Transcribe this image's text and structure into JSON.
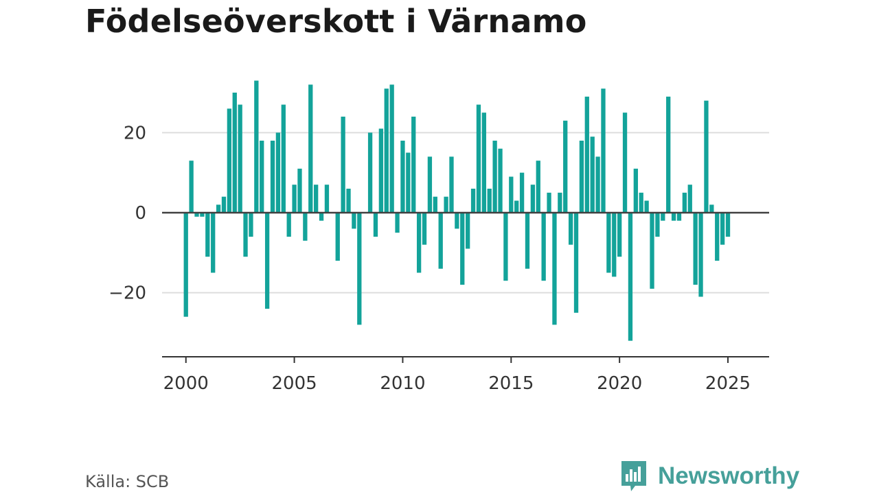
{
  "title": "Födelseöverskott i Värnamo",
  "source": "Källa: SCB",
  "brand": {
    "name": "Newsworthy",
    "icon": "newsworthy-logo-icon",
    "color": "#46a09a"
  },
  "colors": {
    "bar": "#13a39a",
    "grid": "#dddddd",
    "zero_line": "#404040",
    "axis": "#333333",
    "text": "#333333"
  },
  "chart_data": {
    "type": "bar",
    "title": "Födelseöverskott i Värnamo",
    "xlabel": "",
    "ylabel": "",
    "x_ticks": [
      2000,
      2005,
      2010,
      2015,
      2020,
      2025
    ],
    "y_ticks": [
      20,
      0,
      -20
    ],
    "y_tick_labels": [
      "20",
      "0",
      "−20"
    ],
    "xlim": [
      1998.9,
      2026.9
    ],
    "ylim": [
      -36,
      36
    ],
    "grid": true,
    "bars_per_year": 4,
    "first_period": 2000.0,
    "values": [
      -26,
      13,
      -1,
      -1,
      -11,
      -15,
      2,
      4,
      26,
      30,
      27,
      -11,
      -6,
      33,
      18,
      -24,
      18,
      20,
      27,
      -6,
      7,
      11,
      -7,
      32,
      7,
      -2,
      7,
      0,
      -12,
      24,
      6,
      -4,
      -28,
      0,
      20,
      -6,
      21,
      31,
      32,
      -5,
      18,
      15,
      24,
      -15,
      -8,
      14,
      4,
      -14,
      4,
      14,
      -4,
      -18,
      -9,
      6,
      27,
      25,
      6,
      18,
      16,
      -17,
      9,
      3,
      10,
      -14,
      7,
      13,
      -17,
      5,
      -28,
      5,
      23,
      -8,
      -25,
      18,
      29,
      19,
      14,
      31,
      -15,
      -16,
      -11,
      25,
      -32,
      11,
      5,
      3,
      -19,
      -6,
      -2,
      29,
      -2,
      -2,
      5,
      7,
      -18,
      -21,
      28,
      2,
      -12,
      -8,
      -6
    ]
  }
}
